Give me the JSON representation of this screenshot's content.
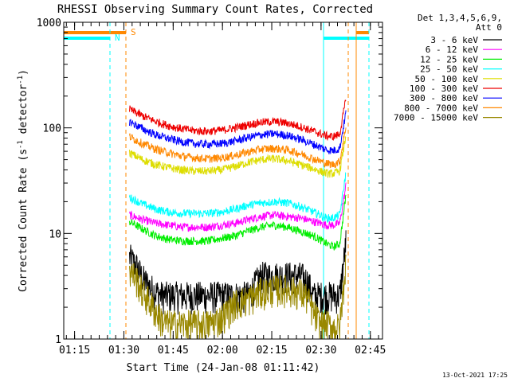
{
  "chart_data": {
    "type": "line",
    "title": "RHESSI Observing Summary Count Rates, Corrected",
    "ylabel": "Corrected Count Rate (s",
    "ylabel_sup": "-1",
    "ylabel_mid": " detector",
    "ylabel_sup2": "-1",
    "ylabel_end": ")",
    "xlabel": "Start Time (24-Jan-08 01:11:42)",
    "footer": "13-Oct-2021 17:25",
    "yscale": "log",
    "ylim": [
      1,
      1000
    ],
    "y_ticks": [
      {
        "value": 1,
        "label": "1"
      },
      {
        "value": 10,
        "label": "10"
      },
      {
        "value": 100,
        "label": "100"
      },
      {
        "value": 1000,
        "label": "1000"
      }
    ],
    "xlim_minutes": [
      0,
      97
    ],
    "x_ticks": [
      {
        "value": 3.3,
        "label": "01:15"
      },
      {
        "value": 18.3,
        "label": "01:30"
      },
      {
        "value": 33.3,
        "label": "01:45"
      },
      {
        "value": 48.3,
        "label": "02:00"
      },
      {
        "value": 63.3,
        "label": "02:15"
      },
      {
        "value": 78.3,
        "label": "02:30"
      },
      {
        "value": 93.3,
        "label": "02:45"
      }
    ],
    "legend_header": [
      "Det 1,3,4,5,6,9,",
      "Att 0"
    ],
    "legend_position": "right",
    "series": [
      {
        "name": "3 - 6 keV",
        "color": "#000000",
        "x": [
          20,
          22,
          24,
          26,
          28,
          30,
          32,
          36,
          40,
          44,
          48,
          52,
          56,
          60,
          64,
          68,
          72,
          74,
          76,
          78,
          80,
          82,
          84,
          86
        ],
        "y": [
          6,
          5,
          3.8,
          3.2,
          2.8,
          2.6,
          2.6,
          2.6,
          2.6,
          2.6,
          2.6,
          2.6,
          2.6,
          4,
          4,
          4,
          4,
          3.6,
          2.6,
          2.6,
          2.6,
          2.6,
          2.6,
          9
        ]
      },
      {
        "name": "6 - 12 keV",
        "color": "#ff00ff",
        "x": [
          20,
          24,
          28,
          32,
          36,
          40,
          44,
          48,
          52,
          56,
          60,
          64,
          68,
          72,
          76,
          80,
          82,
          84,
          86
        ],
        "y": [
          15,
          13.5,
          12.5,
          12,
          11.5,
          11.5,
          11.5,
          12,
          12.5,
          13.5,
          14.5,
          15,
          14.5,
          14,
          13,
          12,
          12,
          12.5,
          30
        ]
      },
      {
        "name": "12 - 25 keV",
        "color": "#00ee00",
        "x": [
          20,
          24,
          28,
          32,
          36,
          40,
          44,
          48,
          52,
          56,
          60,
          64,
          68,
          72,
          76,
          80,
          82,
          84,
          86
        ],
        "y": [
          13,
          11,
          9.5,
          8.8,
          8.5,
          8.5,
          8.5,
          9,
          9.5,
          10.5,
          11.5,
          12,
          11.5,
          10.5,
          9.5,
          8,
          7.5,
          8,
          25
        ]
      },
      {
        "name": "25 - 50 keV",
        "color": "#00ffff",
        "x": [
          20,
          24,
          28,
          32,
          36,
          40,
          44,
          48,
          52,
          56,
          60,
          64,
          68,
          72,
          76,
          80,
          82,
          84,
          86
        ],
        "y": [
          22,
          19,
          17,
          16,
          15.5,
          15.5,
          15.5,
          16,
          17,
          18.5,
          19.5,
          20,
          19.5,
          18,
          16,
          14,
          14,
          15,
          40
        ]
      },
      {
        "name": "50 - 100 keV",
        "color": "#dddd00",
        "x": [
          20,
          24,
          28,
          32,
          36,
          40,
          44,
          48,
          52,
          56,
          60,
          64,
          68,
          72,
          76,
          80,
          82,
          84,
          86
        ],
        "y": [
          58,
          50,
          45,
          42,
          40,
          39,
          39,
          40,
          43,
          47,
          50,
          51,
          49,
          45,
          41,
          37,
          37,
          39,
          90
        ]
      },
      {
        "name": "100 - 300 keV",
        "color": "#ee0000",
        "x": [
          20,
          24,
          28,
          32,
          36,
          40,
          44,
          48,
          52,
          56,
          60,
          64,
          68,
          72,
          76,
          80,
          82,
          84,
          86
        ],
        "y": [
          150,
          130,
          115,
          105,
          98,
          94,
          93,
          95,
          100,
          107,
          113,
          115,
          111,
          103,
          93,
          84,
          83,
          87,
          200
        ]
      },
      {
        "name": "300 - 800 keV",
        "color": "#0000ff",
        "x": [
          20,
          24,
          28,
          32,
          36,
          40,
          44,
          48,
          52,
          56,
          60,
          64,
          68,
          72,
          76,
          80,
          82,
          84,
          86
        ],
        "y": [
          115,
          98,
          86,
          79,
          74,
          71,
          70,
          71,
          75,
          81,
          86,
          88,
          85,
          78,
          70,
          62,
          61,
          64,
          150
        ]
      },
      {
        "name": "800 - 7000 keV",
        "color": "#ff8800",
        "x": [
          20,
          24,
          28,
          32,
          36,
          40,
          44,
          48,
          52,
          56,
          60,
          64,
          68,
          72,
          76,
          80,
          82,
          84,
          86
        ],
        "y": [
          83,
          71,
          63,
          58,
          54,
          52,
          51,
          52,
          55,
          59,
          63,
          64,
          62,
          57,
          51,
          46,
          45,
          48,
          110
        ]
      },
      {
        "name": "7000 - 15000 keV",
        "color": "#998800",
        "x": [
          20,
          22,
          24,
          26,
          28,
          30,
          32,
          36,
          40,
          44,
          48,
          52,
          56,
          60,
          64,
          68,
          72,
          74,
          76,
          78,
          80,
          82,
          84,
          86
        ],
        "y": [
          4.5,
          3.8,
          2.8,
          2.3,
          1.8,
          1.5,
          1.4,
          1.4,
          1.4,
          1.4,
          1.6,
          2.2,
          2.4,
          2.8,
          3,
          3,
          2.8,
          2.5,
          1.8,
          1.4,
          1.4,
          1.3,
          1.3,
          6
        ]
      }
    ],
    "annotations": [
      {
        "label": "S",
        "color": "#ff8800"
      },
      {
        "label": "N",
        "color": "#00ffff"
      }
    ]
  }
}
